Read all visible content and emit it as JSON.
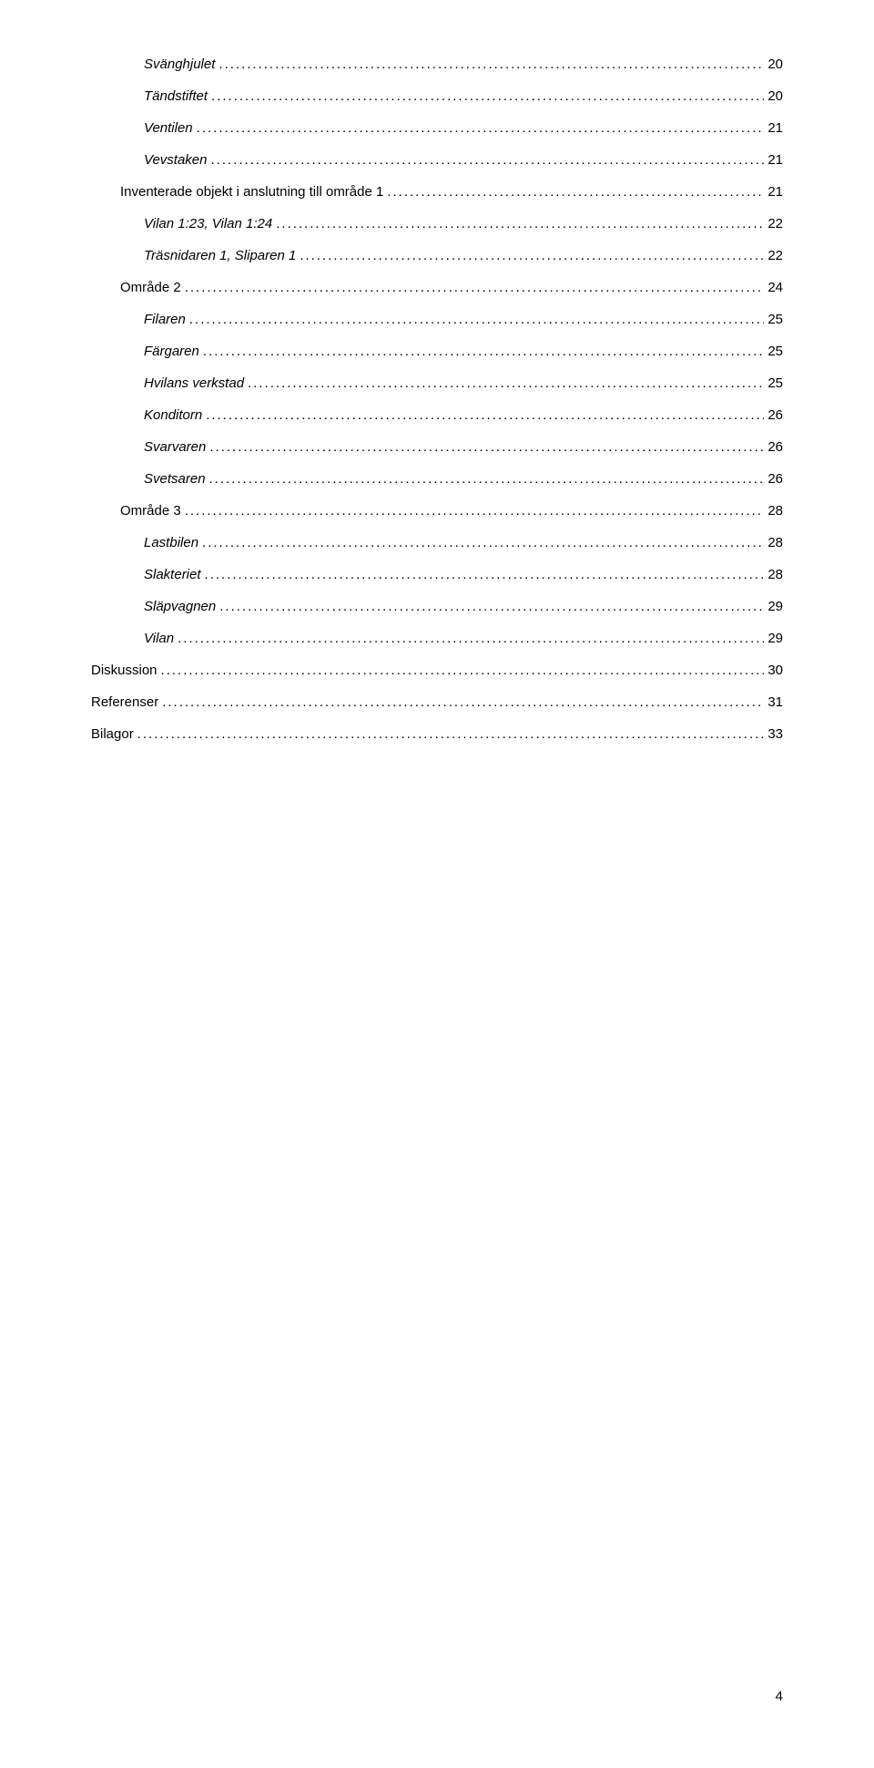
{
  "toc": [
    {
      "label": "Svänghjulet",
      "page": "20",
      "indent": 2,
      "italic": true
    },
    {
      "label": "Tändstiftet",
      "page": "20",
      "indent": 2,
      "italic": true
    },
    {
      "label": "Ventilen",
      "page": "21",
      "indent": 2,
      "italic": true
    },
    {
      "label": "Vevstaken",
      "page": "21",
      "indent": 2,
      "italic": true
    },
    {
      "label": "Inventerade objekt i anslutning till område 1",
      "page": "21",
      "indent": 1,
      "italic": false
    },
    {
      "label": "Vilan 1:23, Vilan 1:24",
      "page": "22",
      "indent": 2,
      "italic": true
    },
    {
      "label": "Träsnidaren 1, Sliparen 1",
      "page": "22",
      "indent": 2,
      "italic": true
    },
    {
      "label": "Område 2",
      "page": "24",
      "indent": 1,
      "italic": false
    },
    {
      "label": "Filaren",
      "page": "25",
      "indent": 2,
      "italic": true
    },
    {
      "label": "Färgaren",
      "page": "25",
      "indent": 2,
      "italic": true
    },
    {
      "label": "Hvilans verkstad",
      "page": "25",
      "indent": 2,
      "italic": true
    },
    {
      "label": "Konditorn",
      "page": "26",
      "indent": 2,
      "italic": true
    },
    {
      "label": "Svarvaren",
      "page": "26",
      "indent": 2,
      "italic": true
    },
    {
      "label": "Svetsaren",
      "page": "26",
      "indent": 2,
      "italic": true
    },
    {
      "label": "Område 3",
      "page": "28",
      "indent": 1,
      "italic": false
    },
    {
      "label": "Lastbilen",
      "page": "28",
      "indent": 2,
      "italic": true
    },
    {
      "label": "Slakteriet",
      "page": "28",
      "indent": 2,
      "italic": true
    },
    {
      "label": "Släpvagnen",
      "page": "29",
      "indent": 2,
      "italic": true
    },
    {
      "label": "Vilan",
      "page": "29",
      "indent": 2,
      "italic": true
    },
    {
      "label": "Diskussion",
      "page": "30",
      "indent": 0,
      "italic": false
    },
    {
      "label": "Referenser",
      "page": "31",
      "indent": 0,
      "italic": false
    },
    {
      "label": "Bilagor",
      "page": "33",
      "indent": 0,
      "italic": false
    }
  ],
  "page_number": "4"
}
